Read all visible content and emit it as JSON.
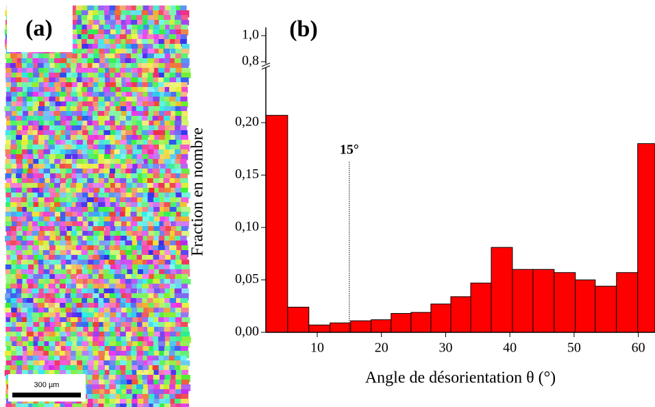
{
  "panel_a": {
    "label": "(a)",
    "scale_bar": "300 µm"
  },
  "chart_data": {
    "type": "histogram",
    "title": "(b)",
    "xlabel": "Angle de désorientation θ (°)",
    "ylabel": "Fraction en nombre",
    "bins": [
      2,
      5.4,
      8.7,
      12,
      15.2,
      18.4,
      21.5,
      24.6,
      27.7,
      30.8,
      33.9,
      37.1,
      40.4,
      43.6,
      46.9,
      50.2,
      53.3,
      56.6,
      59.9,
      62.6
    ],
    "values": [
      0.207,
      0.024,
      0.007,
      0.009,
      0.011,
      0.012,
      0.018,
      0.019,
      0.027,
      0.034,
      0.047,
      0.081,
      0.06,
      0.06,
      0.057,
      0.05,
      0.044,
      0.057,
      0.18
    ],
    "color": "#ff0000",
    "xlim": [
      2,
      62.6
    ],
    "xticks": [
      10,
      20,
      30,
      40,
      50,
      60
    ],
    "ylim": [
      0,
      0.25
    ],
    "yticks": [
      {
        "value": 0,
        "label": "0,00"
      },
      {
        "value": 0.05,
        "label": "0,05"
      },
      {
        "value": 0.1,
        "label": "0,10"
      },
      {
        "value": 0.15,
        "label": "0,15"
      },
      {
        "value": 0.2,
        "label": "0,20"
      }
    ],
    "ylim_upper": [
      0.8,
      1.0
    ],
    "yticks_upper": [
      {
        "value": 0.8,
        "label": "0,8"
      },
      {
        "value": 1.0,
        "label": "1,0"
      }
    ],
    "annotation": {
      "text": "15°",
      "x": 15
    }
  }
}
